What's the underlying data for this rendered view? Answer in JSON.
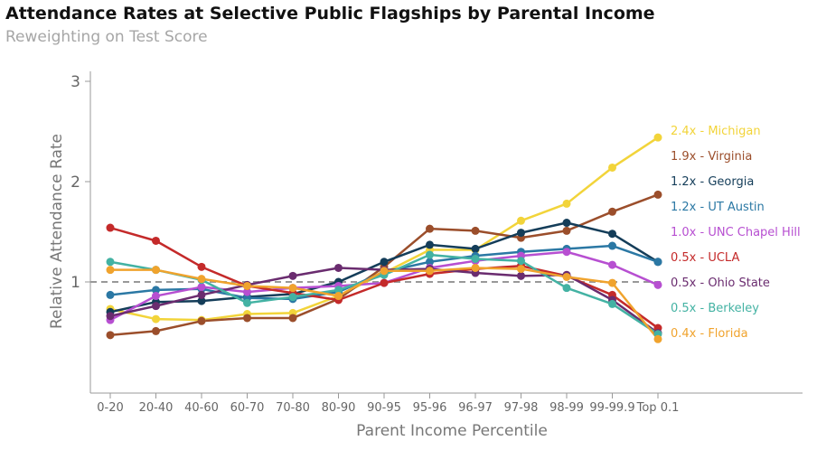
{
  "header": {
    "title": "Attendance Rates at Selective Public Flagships by Parental Income",
    "subtitle": "Reweighting on Test Score"
  },
  "chart_data": {
    "type": "line",
    "title": "Attendance Rates at Selective Public Flagships by Parental Income",
    "subtitle": "Reweighting on Test Score",
    "xlabel": "Parent Income Percentile",
    "ylabel": "Relative Attendance Rate",
    "categories": [
      "0-20",
      "20-40",
      "40-60",
      "60-70",
      "70-80",
      "80-90",
      "90-95",
      "95-96",
      "96-97",
      "97-98",
      "98-99",
      "99-99.9",
      "Top 0.1"
    ],
    "ylim": [
      0,
      3.1
    ],
    "yticks": [
      1,
      2,
      3
    ],
    "ytick_labels": [
      "1",
      "2",
      "3"
    ],
    "reference_line": 1,
    "grid": false,
    "legend_position": "right",
    "series": [
      {
        "name": "Michigan",
        "label": "2.4x - Michigan",
        "color": "#f2d43a",
        "values": [
          0.73,
          0.63,
          0.62,
          0.68,
          0.69,
          0.86,
          1.09,
          1.32,
          1.32,
          1.61,
          1.78,
          2.14,
          2.44
        ]
      },
      {
        "name": "Virginia",
        "label": "1.9x - Virginia",
        "color": "#9b4e2b",
        "values": [
          0.47,
          0.51,
          0.61,
          0.64,
          0.64,
          0.83,
          1.15,
          1.53,
          1.51,
          1.44,
          1.51,
          1.7,
          1.87
        ]
      },
      {
        "name": "Georgia",
        "label": "1.2x - Georgia",
        "color": "#143d59",
        "values": [
          0.7,
          0.8,
          0.81,
          0.85,
          0.88,
          1.0,
          1.2,
          1.37,
          1.33,
          1.49,
          1.59,
          1.48,
          1.2
        ]
      },
      {
        "name": "UT Austin",
        "label": "1.2x - UT Austin",
        "color": "#2b78a4",
        "values": [
          0.87,
          0.92,
          0.93,
          0.84,
          0.83,
          0.9,
          1.1,
          1.2,
          1.26,
          1.3,
          1.33,
          1.36,
          1.2
        ]
      },
      {
        "name": "UNC Chapel Hill",
        "label": "1.0x - UNC Chapel Hill",
        "color": "#b74fd1",
        "values": [
          0.62,
          0.86,
          0.95,
          0.9,
          0.94,
          0.96,
          0.99,
          1.14,
          1.21,
          1.26,
          1.3,
          1.17,
          0.97
        ]
      },
      {
        "name": "UCLA",
        "label": "0.5x - UCLA",
        "color": "#c42a2a",
        "values": [
          1.54,
          1.41,
          1.15,
          0.96,
          0.89,
          0.82,
          0.99,
          1.08,
          1.13,
          1.16,
          1.06,
          0.87,
          0.54
        ]
      },
      {
        "name": "Ohio State",
        "label": "0.5x - Ohio State",
        "color": "#6a2c6f",
        "values": [
          0.66,
          0.76,
          0.87,
          0.97,
          1.06,
          1.14,
          1.12,
          1.13,
          1.09,
          1.06,
          1.07,
          0.82,
          0.49
        ]
      },
      {
        "name": "Berkeley",
        "label": "0.5x - Berkeley",
        "color": "#43b2a3",
        "values": [
          1.2,
          1.12,
          1.02,
          0.79,
          0.85,
          0.92,
          1.07,
          1.27,
          1.23,
          1.21,
          0.94,
          0.78,
          0.48
        ]
      },
      {
        "name": "Florida",
        "label": "0.4x - Florida",
        "color": "#f0a32d",
        "values": [
          1.12,
          1.12,
          1.03,
          0.96,
          0.94,
          0.86,
          1.11,
          1.11,
          1.14,
          1.13,
          1.05,
          0.99,
          0.43
        ]
      }
    ]
  }
}
